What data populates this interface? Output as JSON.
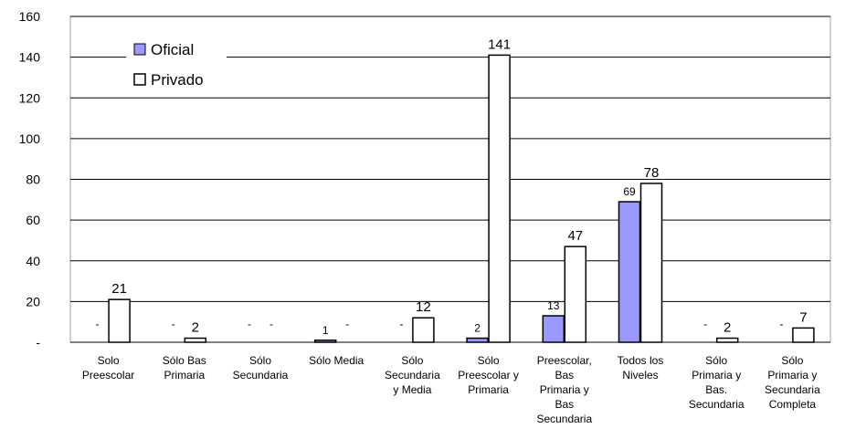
{
  "chart_data": {
    "type": "bar",
    "categories": [
      [
        "Solo",
        "Preescolar"
      ],
      [
        "Sólo Bas",
        "Primaria"
      ],
      [
        "Sólo",
        "Secundaria"
      ],
      [
        "Sólo Media"
      ],
      [
        "Sólo",
        "Secundaria",
        "y Media"
      ],
      [
        "Sólo",
        "Preescolar y",
        "Primaria"
      ],
      [
        "Preescolar,",
        "Bas",
        "Primaria y",
        "Bas",
        "Secundaria"
      ],
      [
        "Todos los",
        "Niveles"
      ],
      [
        "Sólo",
        "Primaria y",
        "Bas.",
        "Secundaria"
      ],
      [
        "Sólo",
        "Primaria y",
        "Secundaria",
        "Completa"
      ]
    ],
    "series": [
      {
        "name": "Oficial",
        "color": "#9999ff",
        "values": [
          0,
          0,
          0,
          1,
          0,
          2,
          13,
          69,
          0,
          0
        ],
        "labels": [
          "-",
          "-",
          "-",
          "1",
          "-",
          "2",
          "13",
          "69",
          "-",
          "-"
        ]
      },
      {
        "name": "Privado",
        "color": "#ffffff",
        "values": [
          21,
          2,
          0,
          0,
          12,
          141,
          47,
          78,
          2,
          7
        ],
        "labels": [
          "21",
          "2",
          "-",
          "-",
          "12",
          "141",
          "47",
          "78",
          "2",
          "7"
        ]
      }
    ],
    "ylim": [
      0,
      160
    ],
    "yticks": [
      0,
      20,
      40,
      60,
      80,
      100,
      120,
      140,
      160
    ],
    "ytick_labels": [
      "-",
      "20",
      "40",
      "60",
      "80",
      "100",
      "120",
      "140",
      "160"
    ],
    "grid": true,
    "legend_position": "top-left"
  }
}
